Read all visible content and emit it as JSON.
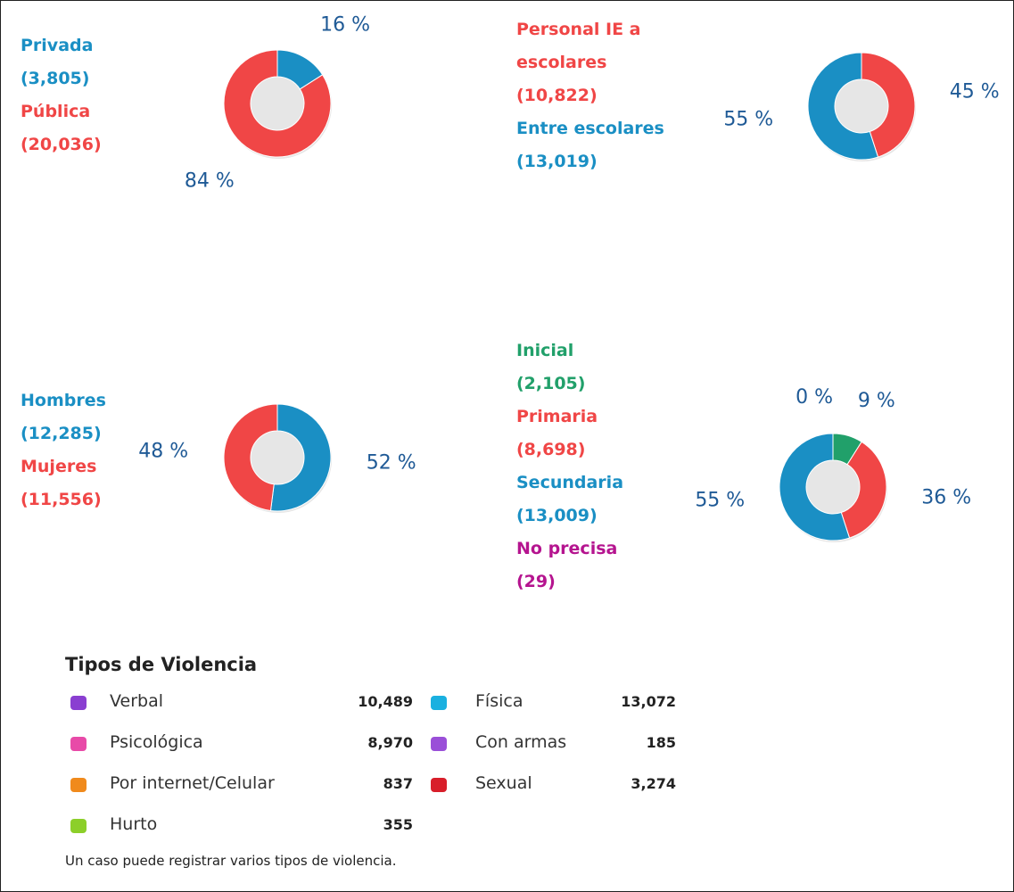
{
  "chart_data": [
    {
      "type": "donut",
      "categories": [
        "Privada",
        "Pública"
      ],
      "counts": [
        "(3,805)",
        "(20,036)"
      ],
      "values": [
        16,
        84
      ],
      "value_labels": [
        "16 %",
        "84 %"
      ],
      "colors": [
        "#1a8fc4",
        "#f04646"
      ]
    },
    {
      "type": "donut",
      "categories": [
        "Personal IE a escolares",
        "Entre escolares"
      ],
      "counts": [
        "(10,822)",
        "(13,019)"
      ],
      "values": [
        45,
        55
      ],
      "value_labels": [
        "45 %",
        "55 %"
      ],
      "colors": [
        "#f04646",
        "#1a8fc4"
      ]
    },
    {
      "type": "donut",
      "categories": [
        "Hombres",
        "Mujeres"
      ],
      "counts": [
        "(12,285)",
        "(11,556)"
      ],
      "values": [
        52,
        48
      ],
      "value_labels": [
        "52 %",
        "48 %"
      ],
      "colors": [
        "#1a8fc4",
        "#f04646"
      ]
    },
    {
      "type": "donut",
      "categories": [
        "Inicial",
        "Primaria",
        "Secundaria",
        "No precisa"
      ],
      "counts": [
        "(2,105)",
        "(8,698)",
        "(13,009)",
        "(29)"
      ],
      "values": [
        9,
        36,
        55,
        0
      ],
      "value_labels": [
        "9 %",
        "36 %",
        "55 %",
        "0 %"
      ],
      "colors": [
        "#21a06a",
        "#f04646",
        "#1a8fc4",
        "#b5148f"
      ]
    }
  ],
  "violence_types": {
    "title": "Tipos de Violencia",
    "items": [
      {
        "label": "Verbal",
        "value": "10,489"
      },
      {
        "label": "Física",
        "value": "13,072"
      },
      {
        "label": "Psicológica",
        "value": "8,970"
      },
      {
        "label": "Con armas",
        "value": "185"
      },
      {
        "label": "Por internet/Celular",
        "value": "837"
      },
      {
        "label": "Sexual",
        "value": "3,274"
      },
      {
        "label": "Hurto",
        "value": "355"
      }
    ],
    "note": "Un caso puede registrar varios tipos de violencia."
  }
}
